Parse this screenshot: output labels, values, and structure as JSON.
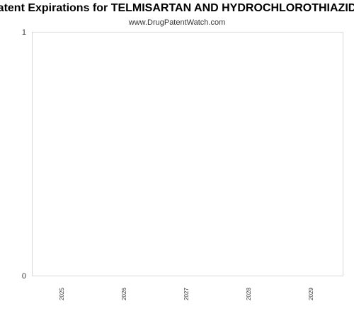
{
  "chart_data": {
    "type": "bar",
    "title": "Patent Expirations for TELMISARTAN AND HYDROCHLOROTHIAZIDE",
    "subtitle": "www.DrugPatentWatch.com",
    "categories": [
      "2025",
      "2026",
      "2027",
      "2028",
      "2029"
    ],
    "series": [
      {
        "values": [
          0,
          0,
          0,
          0,
          0
        ]
      }
    ],
    "xlabel": "",
    "ylabel": "",
    "ylim": [
      0,
      1
    ],
    "yticks": [
      "0",
      "1"
    ],
    "grid": false,
    "legend": "none",
    "colors": {
      "frame": "#d9d9d9",
      "axis_text": "#333333",
      "bar": "#4a7ebb"
    }
  }
}
